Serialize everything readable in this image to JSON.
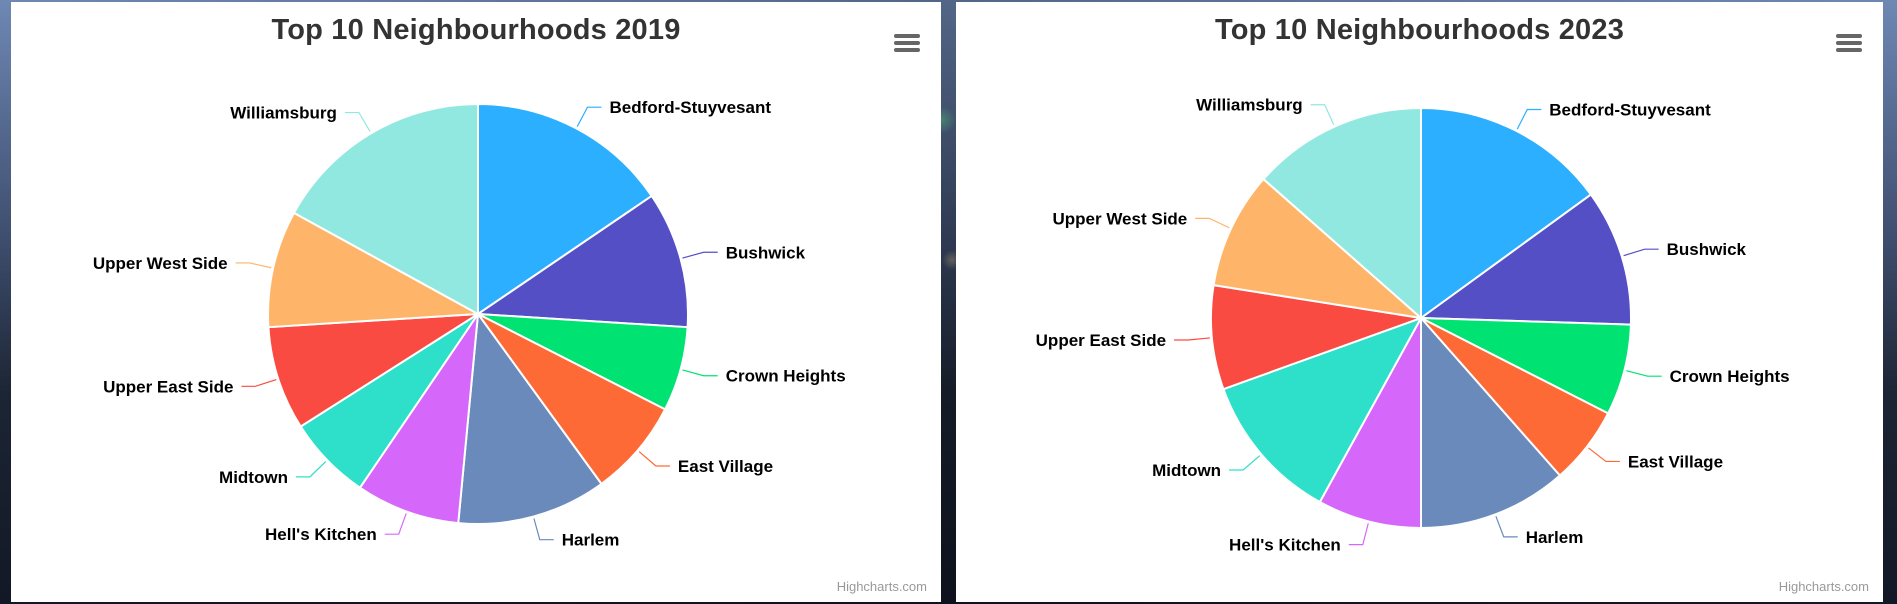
{
  "chart_data": [
    {
      "type": "pie",
      "title": "Top 10 Neighbourhoods 2019",
      "menu_icon": "hamburger-menu-icon",
      "credits": "Highcharts.com",
      "slices": [
        {
          "name": "Bedford-Stuyvesant",
          "value": 15.5,
          "color": "#2caffe"
        },
        {
          "name": "Bushwick",
          "value": 10.5,
          "color": "#544fc5"
        },
        {
          "name": "Crown Heights",
          "value": 6.5,
          "color": "#00e272"
        },
        {
          "name": "East Village",
          "value": 7.5,
          "color": "#fe6a35"
        },
        {
          "name": "Harlem",
          "value": 11.5,
          "color": "#6b8abc"
        },
        {
          "name": "Hell's Kitchen",
          "value": 8.0,
          "color": "#d568fb"
        },
        {
          "name": "Midtown",
          "value": 6.5,
          "color": "#2ee0ca"
        },
        {
          "name": "Upper East Side",
          "value": 8.0,
          "color": "#fa4b42"
        },
        {
          "name": "Upper West Side",
          "value": 9.0,
          "color": "#feb56a"
        },
        {
          "name": "Williamsburg",
          "value": 17.0,
          "color": "#91e8e1"
        }
      ]
    },
    {
      "type": "pie",
      "title": "Top 10 Neighbourhoods 2023",
      "menu_icon": "hamburger-menu-icon",
      "credits": "Highcharts.com",
      "slices": [
        {
          "name": "Bedford-Stuyvesant",
          "value": 15.0,
          "color": "#2caffe"
        },
        {
          "name": "Bushwick",
          "value": 10.5,
          "color": "#544fc5"
        },
        {
          "name": "Crown Heights",
          "value": 7.0,
          "color": "#00e272"
        },
        {
          "name": "East Village",
          "value": 6.0,
          "color": "#fe6a35"
        },
        {
          "name": "Harlem",
          "value": 11.5,
          "color": "#6b8abc"
        },
        {
          "name": "Hell's Kitchen",
          "value": 8.0,
          "color": "#d568fb"
        },
        {
          "name": "Midtown",
          "value": 11.5,
          "color": "#2ee0ca"
        },
        {
          "name": "Upper East Side",
          "value": 8.0,
          "color": "#fa4b42"
        },
        {
          "name": "Upper West Side",
          "value": 9.0,
          "color": "#feb56a"
        },
        {
          "name": "Williamsburg",
          "value": 13.5,
          "color": "#91e8e1"
        }
      ]
    }
  ]
}
